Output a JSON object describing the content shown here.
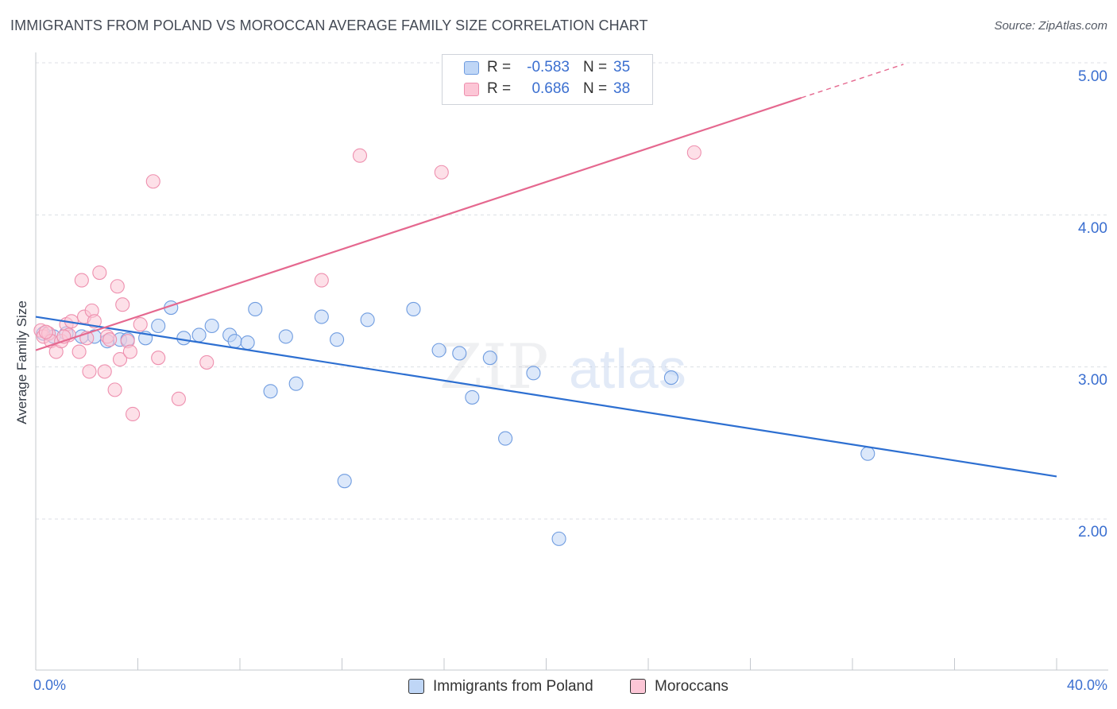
{
  "header": {
    "title": "IMMIGRANTS FROM POLAND VS MOROCCAN AVERAGE FAMILY SIZE CORRELATION CHART",
    "source": "Source: ZipAtlas.com"
  },
  "stats": {
    "rows": [
      {
        "r_label": "R =",
        "r_value": "-0.583",
        "n_label": "N =",
        "n_value": "35"
      },
      {
        "r_label": "R =",
        "r_value": "0.686",
        "n_label": "N =",
        "n_value": "38"
      }
    ]
  },
  "legend": {
    "items": [
      {
        "label": "Immigrants from Poland"
      },
      {
        "label": "Moroccans"
      }
    ]
  },
  "watermark": {
    "zip": "ZIP",
    "atlas": "atlas"
  },
  "colors": {
    "blue_fill": "#bfd6f6",
    "blue_stroke": "#6f9ce0",
    "blue_line": "#2d6fd1",
    "pink_fill": "#fcc6d6",
    "pink_stroke": "#ee8fae",
    "pink_line": "#e5688f",
    "tick_text": "#3b6fd0"
  },
  "chart_data": {
    "type": "scatter",
    "title": "IMMIGRANTS FROM POLAND VS MOROCCAN AVERAGE FAMILY SIZE CORRELATION CHART",
    "xlabel": "",
    "ylabel": "Average Family Size",
    "x_ticks": [
      "0.0%",
      "40.0%"
    ],
    "y_ticks": [
      "5.00",
      "4.00",
      "3.00",
      "2.00"
    ],
    "xlim": [
      0,
      40
    ],
    "ylim": [
      1.0,
      5.1
    ],
    "grid": true,
    "legend_position": "bottom-center",
    "series": [
      {
        "name": "Immigrants from Poland",
        "points": [
          [
            0.3,
            3.22
          ],
          [
            0.7,
            3.2
          ],
          [
            1.2,
            3.22
          ],
          [
            1.8,
            3.2
          ],
          [
            2.3,
            3.2
          ],
          [
            2.8,
            3.17
          ],
          [
            3.3,
            3.18
          ],
          [
            3.6,
            3.18
          ],
          [
            4.3,
            3.19
          ],
          [
            4.8,
            3.27
          ],
          [
            5.3,
            3.39
          ],
          [
            5.8,
            3.19
          ],
          [
            6.4,
            3.21
          ],
          [
            6.9,
            3.27
          ],
          [
            7.6,
            3.21
          ],
          [
            7.8,
            3.17
          ],
          [
            8.3,
            3.16
          ],
          [
            8.6,
            3.38
          ],
          [
            9.2,
            2.84
          ],
          [
            9.8,
            3.2
          ],
          [
            10.2,
            2.89
          ],
          [
            11.2,
            3.33
          ],
          [
            11.8,
            3.18
          ],
          [
            12.1,
            2.25
          ],
          [
            13.0,
            3.31
          ],
          [
            14.8,
            3.38
          ],
          [
            15.8,
            3.11
          ],
          [
            16.6,
            3.09
          ],
          [
            17.1,
            2.8
          ],
          [
            17.8,
            3.06
          ],
          [
            18.4,
            2.53
          ],
          [
            19.5,
            2.96
          ],
          [
            20.5,
            1.87
          ],
          [
            24.9,
            2.93
          ],
          [
            32.6,
            2.43
          ]
        ],
        "trend": {
          "x": [
            0,
            40
          ],
          "y": [
            3.33,
            2.28
          ]
        }
      },
      {
        "name": "Moroccans",
        "points": [
          [
            0.2,
            3.24
          ],
          [
            0.3,
            3.2
          ],
          [
            0.5,
            3.22
          ],
          [
            0.6,
            3.17
          ],
          [
            0.8,
            3.1
          ],
          [
            1.0,
            3.17
          ],
          [
            1.2,
            3.28
          ],
          [
            1.3,
            3.21
          ],
          [
            1.4,
            3.3
          ],
          [
            1.7,
            3.1
          ],
          [
            1.8,
            3.57
          ],
          [
            1.9,
            3.33
          ],
          [
            2.1,
            2.97
          ],
          [
            2.2,
            3.37
          ],
          [
            2.3,
            3.3
          ],
          [
            2.5,
            3.62
          ],
          [
            2.7,
            2.97
          ],
          [
            2.8,
            3.2
          ],
          [
            2.9,
            3.18
          ],
          [
            3.1,
            2.85
          ],
          [
            3.2,
            3.53
          ],
          [
            3.3,
            3.05
          ],
          [
            3.4,
            3.41
          ],
          [
            3.6,
            3.17
          ],
          [
            3.7,
            3.1
          ],
          [
            3.8,
            2.69
          ],
          [
            4.1,
            3.28
          ],
          [
            4.6,
            4.22
          ],
          [
            4.8,
            3.06
          ],
          [
            5.6,
            2.79
          ],
          [
            6.7,
            3.03
          ],
          [
            11.2,
            3.57
          ],
          [
            12.7,
            4.39
          ],
          [
            15.9,
            4.28
          ],
          [
            25.8,
            4.41
          ],
          [
            0.4,
            3.23
          ],
          [
            1.1,
            3.2
          ],
          [
            2.0,
            3.19
          ]
        ],
        "trend": {
          "x": [
            0,
            30
          ],
          "y": [
            3.11,
            4.77
          ]
        },
        "trend_dashed": {
          "x": [
            30,
            34
          ],
          "y": [
            4.77,
            4.99
          ]
        }
      }
    ]
  }
}
